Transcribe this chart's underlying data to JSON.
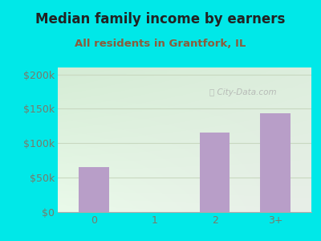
{
  "title": "Median family income by earners",
  "subtitle": "All residents in Grantfork, IL",
  "categories": [
    "0",
    "1",
    "2",
    "3+"
  ],
  "values": [
    65000,
    0,
    115000,
    143000
  ],
  "bar_color": "#b89ec8",
  "background_color": "#00e8e8",
  "title_color": "#222222",
  "subtitle_color": "#8b5c3c",
  "tick_color": "#7a7a6a",
  "ylim": [
    0,
    210000
  ],
  "yticks": [
    0,
    50000,
    100000,
    150000,
    200000
  ],
  "ytick_labels": [
    "$0",
    "$50k",
    "$100k",
    "$150k",
    "$200k"
  ],
  "watermark": "City-Data.com",
  "title_fontsize": 12,
  "subtitle_fontsize": 9.5,
  "grid_color": "#c8d8c0",
  "plot_bg_topleft": "#d8edd8",
  "plot_bg_topright": "#e8e8e8",
  "plot_bg_bottom": "#edfaed"
}
